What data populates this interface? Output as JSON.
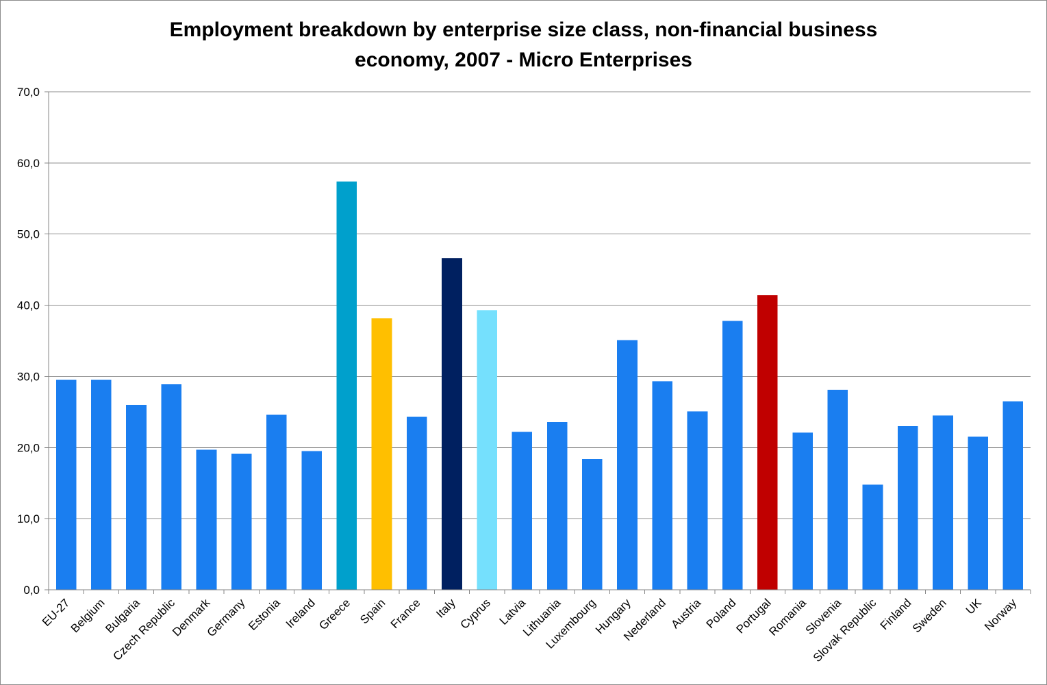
{
  "chart_data": {
    "type": "bar",
    "title_lines": [
      "Employment breakdown by enterprise size class, non-financial business",
      "economy, 2007 - Micro Enterprises"
    ],
    "xlabel": "",
    "ylabel": "",
    "ylim": [
      0,
      70
    ],
    "y_ticks": [
      "0,0",
      "10,0",
      "20,0",
      "30,0",
      "40,0",
      "50,0",
      "60,0",
      "70,0"
    ],
    "grid": true,
    "legend": "none",
    "categories": [
      "EU-27",
      "Belgium",
      "Bulgaria",
      "Czech Republic",
      "Denmark",
      "Germany",
      "Estonia",
      "Ireland",
      "Greece",
      "Spain",
      "France",
      "Italy",
      "Cyprus",
      "Latvia",
      "Lithuania",
      "Luxembourg",
      "Hungary",
      "Nederland",
      "Austria",
      "Poland",
      "Portugal",
      "Romania",
      "Slovenia",
      "Slovak Republic",
      "Finland",
      "Sweden",
      "UK",
      "Norway"
    ],
    "values": [
      29.5,
      29.5,
      26.0,
      28.9,
      19.7,
      19.1,
      24.6,
      19.5,
      57.4,
      38.2,
      24.3,
      46.6,
      39.3,
      22.2,
      23.6,
      18.4,
      35.1,
      29.3,
      25.1,
      37.8,
      41.4,
      22.1,
      28.1,
      14.8,
      23.0,
      24.5,
      21.5,
      26.5
    ],
    "colors": [
      "#1a7ef0",
      "#1a7ef0",
      "#1a7ef0",
      "#1a7ef0",
      "#1a7ef0",
      "#1a7ef0",
      "#1a7ef0",
      "#1a7ef0",
      "#00a0cc",
      "#ffbf00",
      "#1a7ef0",
      "#002060",
      "#75e0fd",
      "#1a7ef0",
      "#1a7ef0",
      "#1a7ef0",
      "#1a7ef0",
      "#1a7ef0",
      "#1a7ef0",
      "#1a7ef0",
      "#c00000",
      "#1a7ef0",
      "#1a7ef0",
      "#1a7ef0",
      "#1a7ef0",
      "#1a7ef0",
      "#1a7ef0",
      "#1a7ef0"
    ],
    "gridline_color": "#8c8c8c",
    "axis_color": "#868686"
  }
}
